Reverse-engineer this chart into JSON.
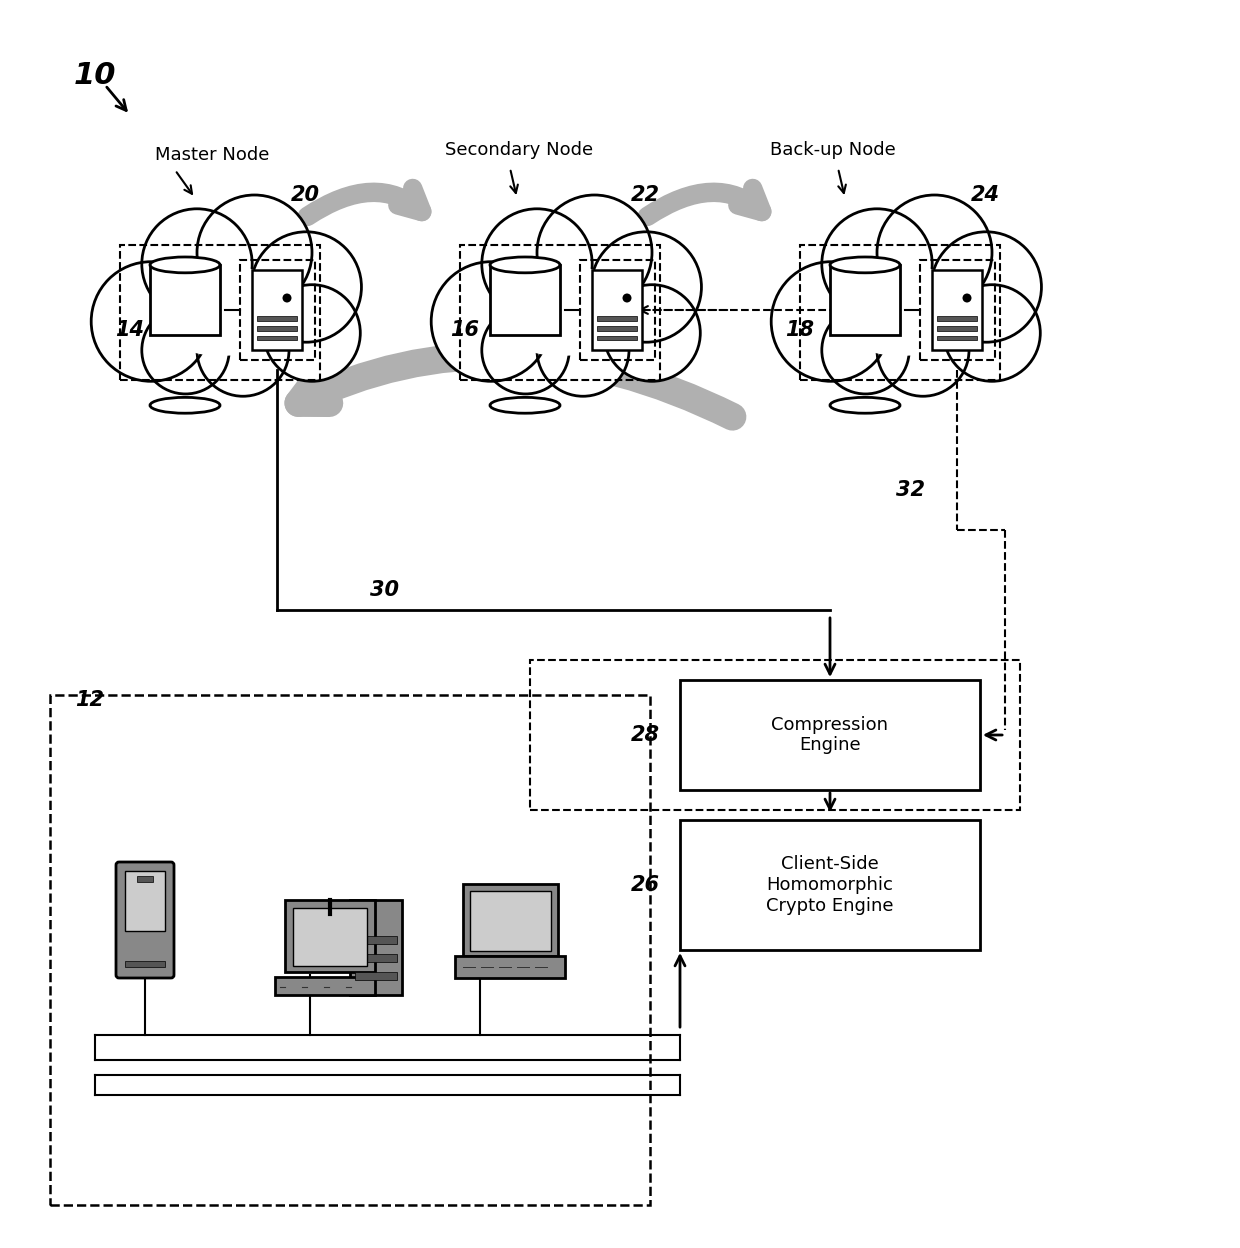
{
  "bg_color": "#ffffff",
  "label_10": "10",
  "label_12": "12",
  "label_14": "14",
  "label_16": "16",
  "label_18": "18",
  "label_20": "20",
  "label_22": "22",
  "label_24": "24",
  "label_26": "26",
  "label_28": "28",
  "label_30": "30",
  "label_32": "32",
  "text_master": "Master Node",
  "text_secondary": "Secondary Node",
  "text_backup": "Back-up Node",
  "text_compression": "Compression\nEngine",
  "text_crypto": "Client-Side\nHomomorphic\nCrypto Engine",
  "arrow_color": "#b0b0b0",
  "arrow_color2": "#c0c0c0"
}
